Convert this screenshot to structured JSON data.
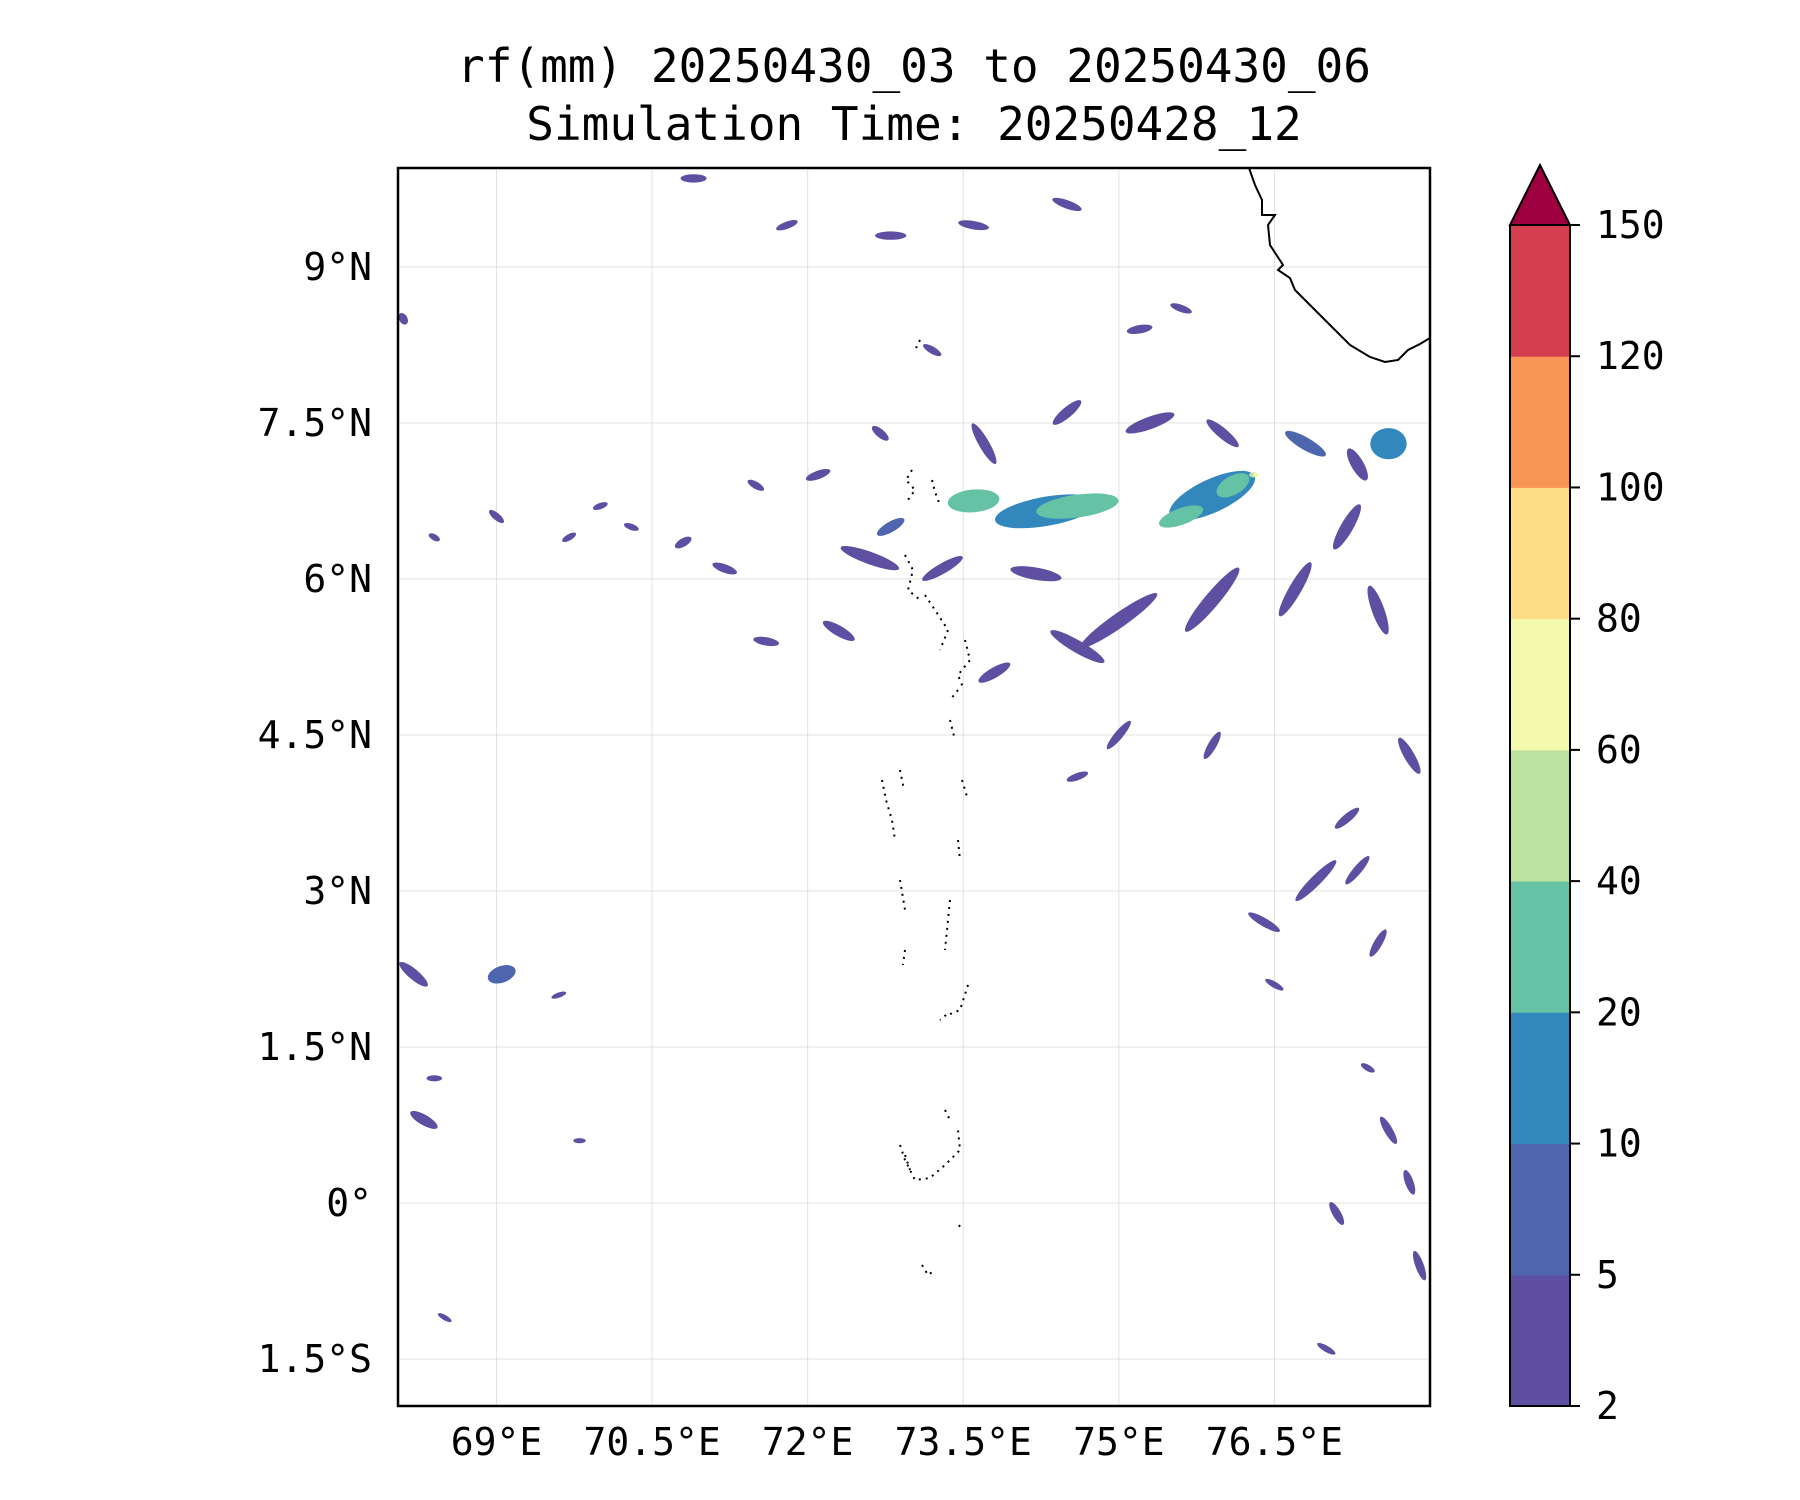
{
  "chart_data": {
    "type": "heatmap",
    "title": "rf(mm) 20250430_03 to 20250430_06",
    "subtitle": "Simulation Time: 20250428_12",
    "xlim": [
      68.05,
      78.0
    ],
    "ylim": [
      -1.95,
      9.95
    ],
    "x_ticks": [
      {
        "value": 69.0,
        "label": "69°E"
      },
      {
        "value": 70.5,
        "label": "70.5°E"
      },
      {
        "value": 72.0,
        "label": "72°E"
      },
      {
        "value": 73.5,
        "label": "73.5°E"
      },
      {
        "value": 75.0,
        "label": "75°E"
      },
      {
        "value": 76.5,
        "label": "76.5°E"
      }
    ],
    "y_ticks": [
      {
        "value": 9.0,
        "label": "9°N"
      },
      {
        "value": 7.5,
        "label": "7.5°N"
      },
      {
        "value": 6.0,
        "label": "6°N"
      },
      {
        "value": 4.5,
        "label": "4.5°N"
      },
      {
        "value": 3.0,
        "label": "3°N"
      },
      {
        "value": 1.5,
        "label": "1.5°N"
      },
      {
        "value": 0.0,
        "label": "0°"
      },
      {
        "value": -1.5,
        "label": "1.5°S"
      }
    ],
    "grid": true,
    "colorbar": {
      "placement": "right",
      "levels": [
        2,
        5,
        10,
        20,
        40,
        60,
        80,
        100,
        120,
        150
      ],
      "labels": [
        "2",
        "5",
        "10",
        "20",
        "40",
        "60",
        "80",
        "100",
        "120",
        "150"
      ],
      "colors": [
        "#5e4fa2",
        "#4d66ad",
        "#3288bd",
        "#66c2a5",
        "#bce4a0",
        "#f3f9ad",
        "#fddd86",
        "#f99655",
        "#d53e4f"
      ],
      "extend_color": "#9e0142",
      "extend": "max"
    },
    "rain_features": [
      {
        "lon": 73.6,
        "lat": 6.75,
        "w": 0.5,
        "h": 0.22,
        "angle": -5,
        "level": 3
      },
      {
        "lon": 74.6,
        "lat": 6.7,
        "w": 0.8,
        "h": 0.22,
        "angle": -8,
        "level": 3
      },
      {
        "lon": 75.6,
        "lat": 6.6,
        "w": 0.45,
        "h": 0.16,
        "angle": -20,
        "level": 3
      },
      {
        "lon": 76.1,
        "lat": 6.9,
        "w": 0.35,
        "h": 0.18,
        "angle": -30,
        "level": 3
      },
      {
        "lon": 76.3,
        "lat": 7.0,
        "w": 0.09,
        "h": 0.05,
        "angle": 0,
        "level": 4
      },
      {
        "lon": 76.32,
        "lat": 7.0,
        "w": 0.05,
        "h": 0.03,
        "angle": 0,
        "level": 5
      },
      {
        "lon": 74.3,
        "lat": 6.65,
        "w": 1.0,
        "h": 0.28,
        "angle": -10,
        "level": 2
      },
      {
        "lon": 75.9,
        "lat": 6.8,
        "w": 0.9,
        "h": 0.32,
        "angle": -25,
        "level": 2
      },
      {
        "lon": 77.6,
        "lat": 7.3,
        "w": 0.35,
        "h": 0.3,
        "angle": 0,
        "level": 2
      },
      {
        "lon": 69.05,
        "lat": 2.2,
        "w": 0.28,
        "h": 0.16,
        "angle": -20,
        "level": 1
      },
      {
        "lon": 72.8,
        "lat": 6.5,
        "w": 0.3,
        "h": 0.1,
        "angle": -30,
        "level": 1
      },
      {
        "lon": 76.8,
        "lat": 7.3,
        "w": 0.45,
        "h": 0.12,
        "angle": 30,
        "level": 1
      },
      {
        "lon": 74.5,
        "lat": 7.6,
        "w": 0.35,
        "h": 0.1,
        "angle": -40,
        "level": 0
      },
      {
        "lon": 73.7,
        "lat": 7.3,
        "w": 0.45,
        "h": 0.1,
        "angle": 60,
        "level": 0
      },
      {
        "lon": 75.3,
        "lat": 7.5,
        "w": 0.5,
        "h": 0.12,
        "angle": -20,
        "level": 0
      },
      {
        "lon": 76.0,
        "lat": 7.4,
        "w": 0.4,
        "h": 0.1,
        "angle": 40,
        "level": 0
      },
      {
        "lon": 77.3,
        "lat": 7.1,
        "w": 0.35,
        "h": 0.12,
        "angle": 60,
        "level": 0
      },
      {
        "lon": 72.6,
        "lat": 6.2,
        "w": 0.6,
        "h": 0.12,
        "angle": 20,
        "level": 0
      },
      {
        "lon": 73.3,
        "lat": 6.1,
        "w": 0.45,
        "h": 0.1,
        "angle": -30,
        "level": 0
      },
      {
        "lon": 74.2,
        "lat": 6.05,
        "w": 0.5,
        "h": 0.12,
        "angle": 10,
        "level": 0
      },
      {
        "lon": 75.0,
        "lat": 5.6,
        "w": 0.9,
        "h": 0.14,
        "angle": -35,
        "level": 0
      },
      {
        "lon": 75.9,
        "lat": 5.8,
        "w": 0.8,
        "h": 0.14,
        "angle": -50,
        "level": 0
      },
      {
        "lon": 74.6,
        "lat": 5.35,
        "w": 0.6,
        "h": 0.12,
        "angle": 30,
        "level": 0
      },
      {
        "lon": 76.7,
        "lat": 5.9,
        "w": 0.6,
        "h": 0.12,
        "angle": -60,
        "level": 0
      },
      {
        "lon": 77.5,
        "lat": 5.7,
        "w": 0.5,
        "h": 0.12,
        "angle": 70,
        "level": 0
      },
      {
        "lon": 77.2,
        "lat": 6.5,
        "w": 0.5,
        "h": 0.12,
        "angle": -60,
        "level": 0
      },
      {
        "lon": 72.3,
        "lat": 5.5,
        "w": 0.35,
        "h": 0.1,
        "angle": 30,
        "level": 0
      },
      {
        "lon": 73.8,
        "lat": 5.1,
        "w": 0.35,
        "h": 0.1,
        "angle": -30,
        "level": 0
      },
      {
        "lon": 71.2,
        "lat": 6.1,
        "w": 0.25,
        "h": 0.08,
        "angle": 20,
        "level": 0
      },
      {
        "lon": 70.8,
        "lat": 6.35,
        "w": 0.18,
        "h": 0.08,
        "angle": -30,
        "level": 0
      },
      {
        "lon": 71.6,
        "lat": 5.4,
        "w": 0.25,
        "h": 0.08,
        "angle": 10,
        "level": 0
      },
      {
        "lon": 72.1,
        "lat": 7.0,
        "w": 0.25,
        "h": 0.08,
        "angle": -20,
        "level": 0
      },
      {
        "lon": 72.7,
        "lat": 7.4,
        "w": 0.2,
        "h": 0.08,
        "angle": 40,
        "level": 0
      },
      {
        "lon": 71.5,
        "lat": 6.9,
        "w": 0.18,
        "h": 0.07,
        "angle": 30,
        "level": 0
      },
      {
        "lon": 69.0,
        "lat": 6.6,
        "w": 0.18,
        "h": 0.07,
        "angle": 40,
        "level": 0
      },
      {
        "lon": 68.4,
        "lat": 6.4,
        "w": 0.12,
        "h": 0.06,
        "angle": 30,
        "level": 0
      },
      {
        "lon": 69.7,
        "lat": 6.4,
        "w": 0.15,
        "h": 0.06,
        "angle": -30,
        "level": 0
      },
      {
        "lon": 70.3,
        "lat": 6.5,
        "w": 0.15,
        "h": 0.06,
        "angle": 20,
        "level": 0
      },
      {
        "lon": 70.0,
        "lat": 6.7,
        "w": 0.15,
        "h": 0.06,
        "angle": -20,
        "level": 0
      },
      {
        "lon": 72.8,
        "lat": 9.3,
        "w": 0.3,
        "h": 0.08,
        "angle": 0,
        "level": 0
      },
      {
        "lon": 73.6,
        "lat": 9.4,
        "w": 0.3,
        "h": 0.08,
        "angle": 10,
        "level": 0
      },
      {
        "lon": 71.8,
        "lat": 9.4,
        "w": 0.22,
        "h": 0.07,
        "angle": -20,
        "level": 0
      },
      {
        "lon": 70.9,
        "lat": 9.85,
        "w": 0.25,
        "h": 0.08,
        "angle": 0,
        "level": 0
      },
      {
        "lon": 68.2,
        "lat": 2.2,
        "w": 0.35,
        "h": 0.1,
        "angle": 40,
        "level": 0
      },
      {
        "lon": 68.3,
        "lat": 0.8,
        "w": 0.3,
        "h": 0.1,
        "angle": 30,
        "level": 0
      },
      {
        "lon": 68.4,
        "lat": 1.2,
        "w": 0.15,
        "h": 0.06,
        "angle": 0,
        "level": 0
      },
      {
        "lon": 68.1,
        "lat": 8.5,
        "w": 0.12,
        "h": 0.08,
        "angle": 60,
        "level": 0
      },
      {
        "lon": 75.0,
        "lat": 4.5,
        "w": 0.35,
        "h": 0.08,
        "angle": -50,
        "level": 0
      },
      {
        "lon": 74.6,
        "lat": 4.1,
        "w": 0.22,
        "h": 0.07,
        "angle": -20,
        "level": 0
      },
      {
        "lon": 75.9,
        "lat": 4.4,
        "w": 0.3,
        "h": 0.08,
        "angle": -60,
        "level": 0
      },
      {
        "lon": 76.9,
        "lat": 3.1,
        "w": 0.55,
        "h": 0.1,
        "angle": -45,
        "level": 0
      },
      {
        "lon": 77.3,
        "lat": 3.2,
        "w": 0.35,
        "h": 0.08,
        "angle": -50,
        "level": 0
      },
      {
        "lon": 76.4,
        "lat": 2.7,
        "w": 0.35,
        "h": 0.08,
        "angle": 30,
        "level": 0
      },
      {
        "lon": 77.5,
        "lat": 2.5,
        "w": 0.3,
        "h": 0.08,
        "angle": -60,
        "level": 0
      },
      {
        "lon": 77.8,
        "lat": 4.3,
        "w": 0.4,
        "h": 0.1,
        "angle": 60,
        "level": 0
      },
      {
        "lon": 77.2,
        "lat": 3.7,
        "w": 0.3,
        "h": 0.08,
        "angle": -40,
        "level": 0
      },
      {
        "lon": 77.6,
        "lat": 0.7,
        "w": 0.3,
        "h": 0.08,
        "angle": 60,
        "level": 0
      },
      {
        "lon": 77.8,
        "lat": 0.2,
        "w": 0.25,
        "h": 0.08,
        "angle": 70,
        "level": 0
      },
      {
        "lon": 77.1,
        "lat": -0.1,
        "w": 0.25,
        "h": 0.08,
        "angle": 60,
        "level": 0
      },
      {
        "lon": 77.9,
        "lat": -0.6,
        "w": 0.3,
        "h": 0.08,
        "angle": 70,
        "level": 0
      },
      {
        "lon": 77.0,
        "lat": -1.4,
        "w": 0.2,
        "h": 0.06,
        "angle": 30,
        "level": 0
      },
      {
        "lon": 76.5,
        "lat": 2.1,
        "w": 0.2,
        "h": 0.06,
        "angle": 30,
        "level": 0
      },
      {
        "lon": 77.4,
        "lat": 1.3,
        "w": 0.15,
        "h": 0.06,
        "angle": 30,
        "level": 0
      },
      {
        "lon": 74.5,
        "lat": 9.6,
        "w": 0.3,
        "h": 0.08,
        "angle": 20,
        "level": 0
      },
      {
        "lon": 75.2,
        "lat": 8.4,
        "w": 0.25,
        "h": 0.08,
        "angle": -10,
        "level": 0
      },
      {
        "lon": 75.6,
        "lat": 8.6,
        "w": 0.22,
        "h": 0.07,
        "angle": 20,
        "level": 0
      },
      {
        "lon": 73.2,
        "lat": 8.2,
        "w": 0.2,
        "h": 0.07,
        "angle": 30,
        "level": 0
      },
      {
        "lon": 69.8,
        "lat": 0.6,
        "w": 0.12,
        "h": 0.05,
        "angle": 0,
        "level": 0
      },
      {
        "lon": 68.5,
        "lat": -1.1,
        "w": 0.15,
        "h": 0.05,
        "angle": 30,
        "level": 0
      },
      {
        "lon": 69.6,
        "lat": 2.0,
        "w": 0.15,
        "h": 0.05,
        "angle": -20,
        "level": 0
      }
    ],
    "coastline_label": ""
  }
}
